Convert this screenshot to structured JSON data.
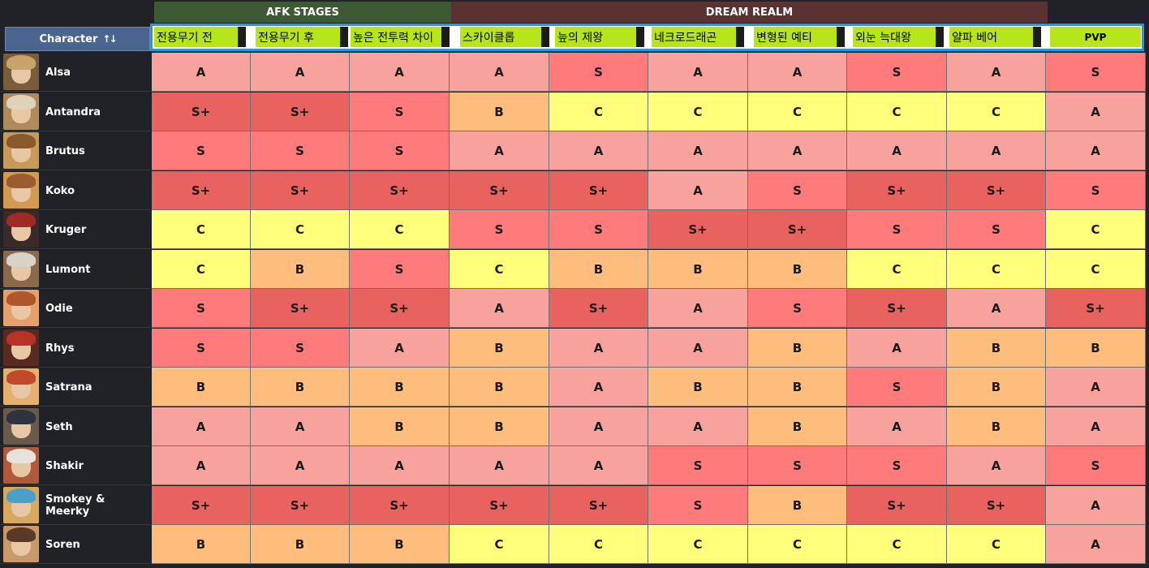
{
  "groups": {
    "afk": "AFK STAGES",
    "dream": "DREAM REALM"
  },
  "character_header": {
    "label": "Character",
    "sort_icon": "↑↓"
  },
  "columns": [
    "전용무기 전",
    "전용무기 후",
    "높은 전투력 차이",
    "스카이클롭",
    "늪의 제왕",
    "네크로드래곤",
    "변형된 예티",
    "외눈 늑대왕",
    "얄파 베어",
    "PVP"
  ],
  "tier_colors": {
    "S+": "#e8625f",
    "S": "#ff7b7b",
    "A": "#f8a29e",
    "B": "#ffbd7d",
    "C": "#ffff7b"
  },
  "rows": [
    {
      "name": "Alsa",
      "avatar_colors": [
        "#c9a46a",
        "#7a5b3a"
      ],
      "tiers": [
        "A",
        "A",
        "A",
        "A",
        "S",
        "A",
        "A",
        "S",
        "A",
        "S"
      ]
    },
    {
      "name": "Antandra",
      "avatar_colors": [
        "#e0d2b8",
        "#b08a5a"
      ],
      "tiers": [
        "S+",
        "S+",
        "S",
        "B",
        "C",
        "C",
        "C",
        "C",
        "C",
        "A"
      ]
    },
    {
      "name": "Brutus",
      "avatar_colors": [
        "#8a5a2c",
        "#c79a5a"
      ],
      "tiers": [
        "S",
        "S",
        "S",
        "A",
        "A",
        "A",
        "A",
        "A",
        "A",
        "A"
      ]
    },
    {
      "name": "Koko",
      "avatar_colors": [
        "#9a5c30",
        "#d39a52"
      ],
      "tiers": [
        "S+",
        "S+",
        "S+",
        "S+",
        "S+",
        "A",
        "S",
        "S+",
        "S+",
        "S"
      ]
    },
    {
      "name": "Kruger",
      "avatar_colors": [
        "#9e2b26",
        "#3a2a2a"
      ],
      "tiers": [
        "C",
        "C",
        "C",
        "S",
        "S",
        "S+",
        "S+",
        "S",
        "S",
        "C"
      ]
    },
    {
      "name": "Lumont",
      "avatar_colors": [
        "#d8d2c8",
        "#8a6a4a"
      ],
      "tiers": [
        "C",
        "B",
        "S",
        "C",
        "B",
        "B",
        "B",
        "C",
        "C",
        "C"
      ]
    },
    {
      "name": "Odie",
      "avatar_colors": [
        "#b0562c",
        "#e8a06a"
      ],
      "tiers": [
        "S",
        "S+",
        "S+",
        "A",
        "S+",
        "A",
        "S",
        "S+",
        "A",
        "S+"
      ]
    },
    {
      "name": "Rhys",
      "avatar_colors": [
        "#b8322a",
        "#5a2a20"
      ],
      "tiers": [
        "S",
        "S",
        "A",
        "B",
        "A",
        "A",
        "B",
        "A",
        "B",
        "B"
      ]
    },
    {
      "name": "Satrana",
      "avatar_colors": [
        "#c24a2a",
        "#e6b070"
      ],
      "tiers": [
        "B",
        "B",
        "B",
        "B",
        "A",
        "B",
        "B",
        "S",
        "B",
        "A"
      ]
    },
    {
      "name": "Seth",
      "avatar_colors": [
        "#2e3340",
        "#6a5a4a"
      ],
      "tiers": [
        "A",
        "A",
        "B",
        "B",
        "A",
        "A",
        "B",
        "A",
        "B",
        "A"
      ]
    },
    {
      "name": "Shakir",
      "avatar_colors": [
        "#e8e2dc",
        "#b05a3a"
      ],
      "tiers": [
        "A",
        "A",
        "A",
        "A",
        "A",
        "S",
        "S",
        "S",
        "A",
        "S"
      ]
    },
    {
      "name": "Smokey & Meerky",
      "avatar_colors": [
        "#4aa0c8",
        "#d8a860"
      ],
      "tiers": [
        "S+",
        "S+",
        "S+",
        "S+",
        "S+",
        "S",
        "B",
        "S+",
        "S+",
        "A"
      ]
    },
    {
      "name": "Soren",
      "avatar_colors": [
        "#5a3a26",
        "#c89a6a"
      ],
      "tiers": [
        "B",
        "B",
        "B",
        "C",
        "C",
        "C",
        "C",
        "C",
        "C",
        "A"
      ]
    }
  ]
}
